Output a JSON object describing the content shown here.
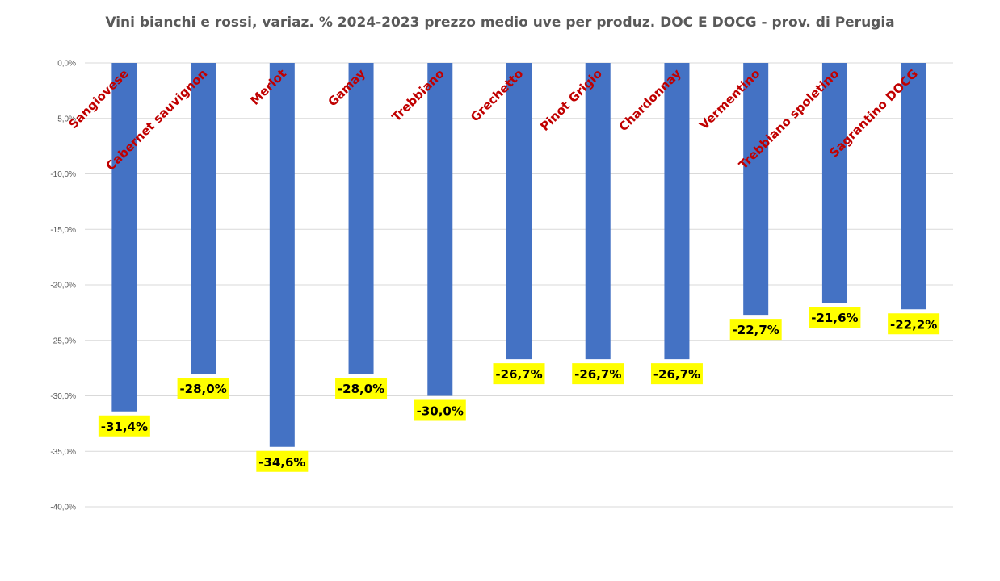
{
  "chart_data": {
    "type": "bar",
    "title": "Vini bianchi e rossi, variaz. % 2024-2023 prezzo medio uve  per produz. DOC E DOCG - prov. di Perugia",
    "categories": [
      "Sangiovese",
      "Cabernet sauvignon",
      "Merlot",
      "Gamay",
      "Trebbiano",
      "Grechetto",
      "Pinot Grigio",
      "Chardonnay",
      "Vermentino",
      "Trebbiano spoletino",
      "Sagrantino DOCG"
    ],
    "values": [
      -31.4,
      -28.0,
      -34.6,
      -28.0,
      -30.0,
      -26.7,
      -26.7,
      -26.7,
      -22.7,
      -21.6,
      -22.2
    ],
    "value_labels": [
      "-31,4%",
      "-28,0%",
      "-34,6%",
      "-28,0%",
      "-30,0%",
      "-26,7%",
      "-26,7%",
      "-26,7%",
      "-22,7%",
      "-21,6%",
      "-22,2%"
    ],
    "y_ticks": [
      0,
      -5,
      -10,
      -15,
      -20,
      -25,
      -30,
      -35,
      -40
    ],
    "y_tick_labels": [
      "0,0%",
      "-5,0%",
      "-10,0%",
      "-15,0%",
      "-20,0%",
      "-25,0%",
      "-30,0%",
      "-35,0%",
      "-40,0%"
    ],
    "ylim": [
      -40,
      0
    ],
    "xlabel": "",
    "ylabel": "",
    "grid": true,
    "legend": "none",
    "colors": {
      "bar": "#4472c4",
      "category_label": "#c00000",
      "value_label_bg": "#ffff00",
      "grid": "#d9d9d9"
    }
  }
}
